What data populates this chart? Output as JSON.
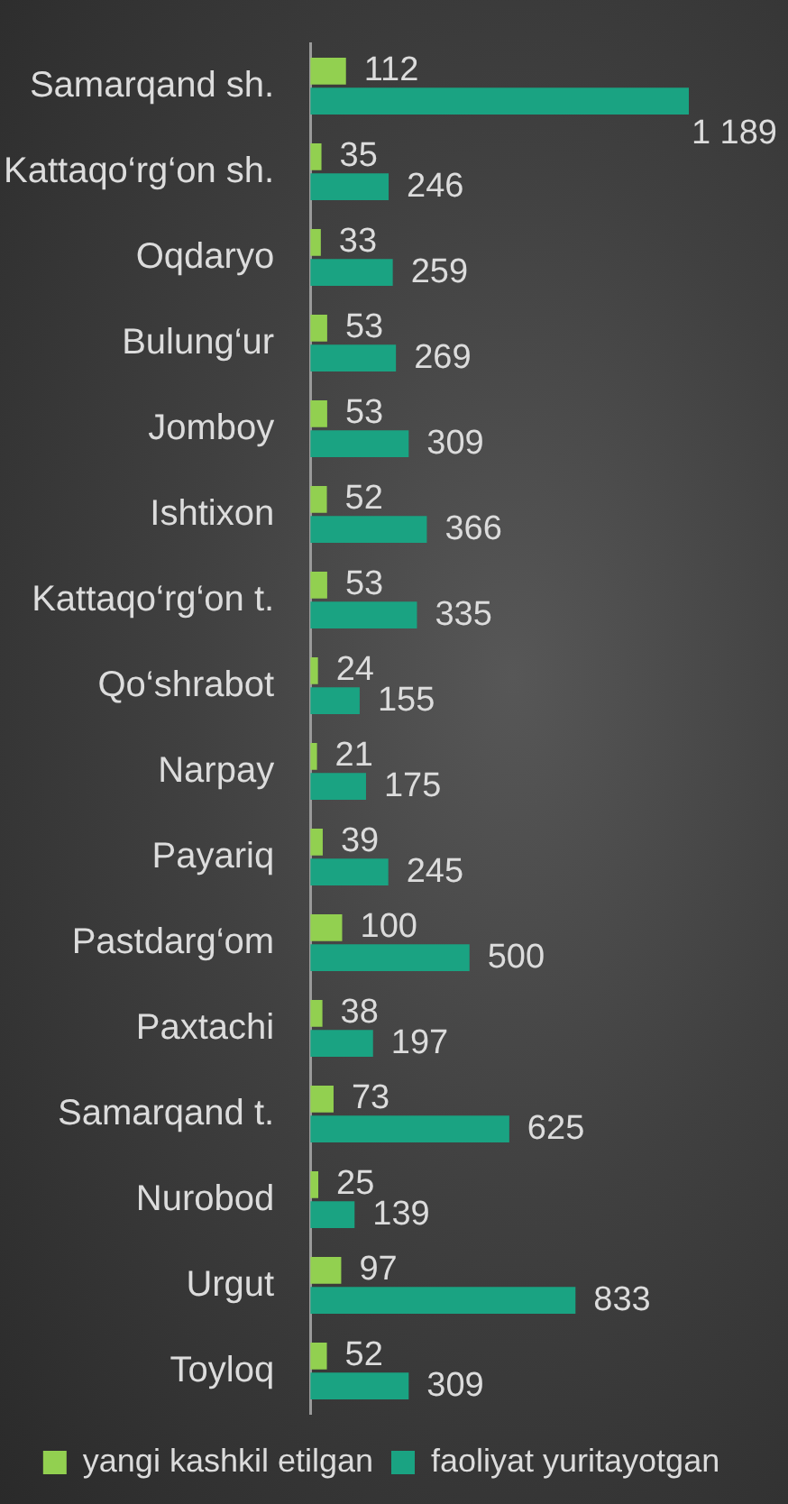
{
  "chart_data": {
    "type": "bar",
    "orientation": "horizontal",
    "categories": [
      "Samarqand sh.",
      "Kattaqo‘rg‘on sh.",
      "Oqdaryo",
      "Bulung‘ur",
      "Jomboy",
      "Ishtixon",
      "Kattaqo‘rg‘on t.",
      "Qo‘shrabot",
      "Narpay",
      "Payariq",
      "Pastdarg‘om",
      "Paxtachi",
      "Samarqand t.",
      "Nurobod",
      "Urgut",
      "Toyloq"
    ],
    "series": [
      {
        "name": "yangi kashkil etilgan",
        "color": "#92d050",
        "values": [
          112,
          35,
          33,
          53,
          53,
          52,
          53,
          24,
          21,
          39,
          100,
          38,
          73,
          25,
          97,
          52
        ],
        "value_labels": [
          "112",
          "35",
          "33",
          "53",
          "53",
          "52",
          "53",
          "24",
          "21",
          "39",
          "100",
          "38",
          "73",
          "25",
          "97",
          "52"
        ]
      },
      {
        "name": "faoliyat yuritayotgan",
        "color": "#1aa382",
        "values": [
          1189,
          246,
          259,
          269,
          309,
          366,
          335,
          155,
          175,
          245,
          500,
          197,
          625,
          139,
          833,
          309
        ],
        "value_labels": [
          "1 189",
          "246",
          "259",
          "269",
          "309",
          "366",
          "335",
          "155",
          "175",
          "245",
          "500",
          "197",
          "625",
          "139",
          "833",
          "309"
        ]
      }
    ],
    "legend": "bottom",
    "grid": false,
    "tick_labels": "y"
  }
}
